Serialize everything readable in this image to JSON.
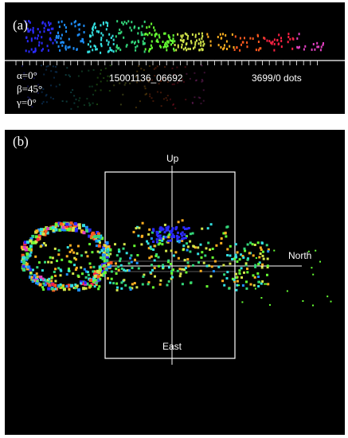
{
  "panel_a": {
    "label": "(a)",
    "angles": {
      "alpha": "α=0°",
      "beta": "β=45°",
      "gamma": "γ=0°"
    },
    "record_id": "15001136_06692",
    "dot_count": "3699/0 dots"
  },
  "panel_b": {
    "label": "(b)",
    "axes": {
      "up": "Up",
      "north": "North",
      "east": "East"
    }
  },
  "colors": {
    "background": "#000000",
    "frame": "#ffffff",
    "spectrum": [
      "#2b2bff",
      "#1e90ff",
      "#33e0e0",
      "#33d67a",
      "#66ff33",
      "#d4e64a",
      "#ffb020",
      "#ff5a1f",
      "#ff2244",
      "#e040c0"
    ]
  }
}
